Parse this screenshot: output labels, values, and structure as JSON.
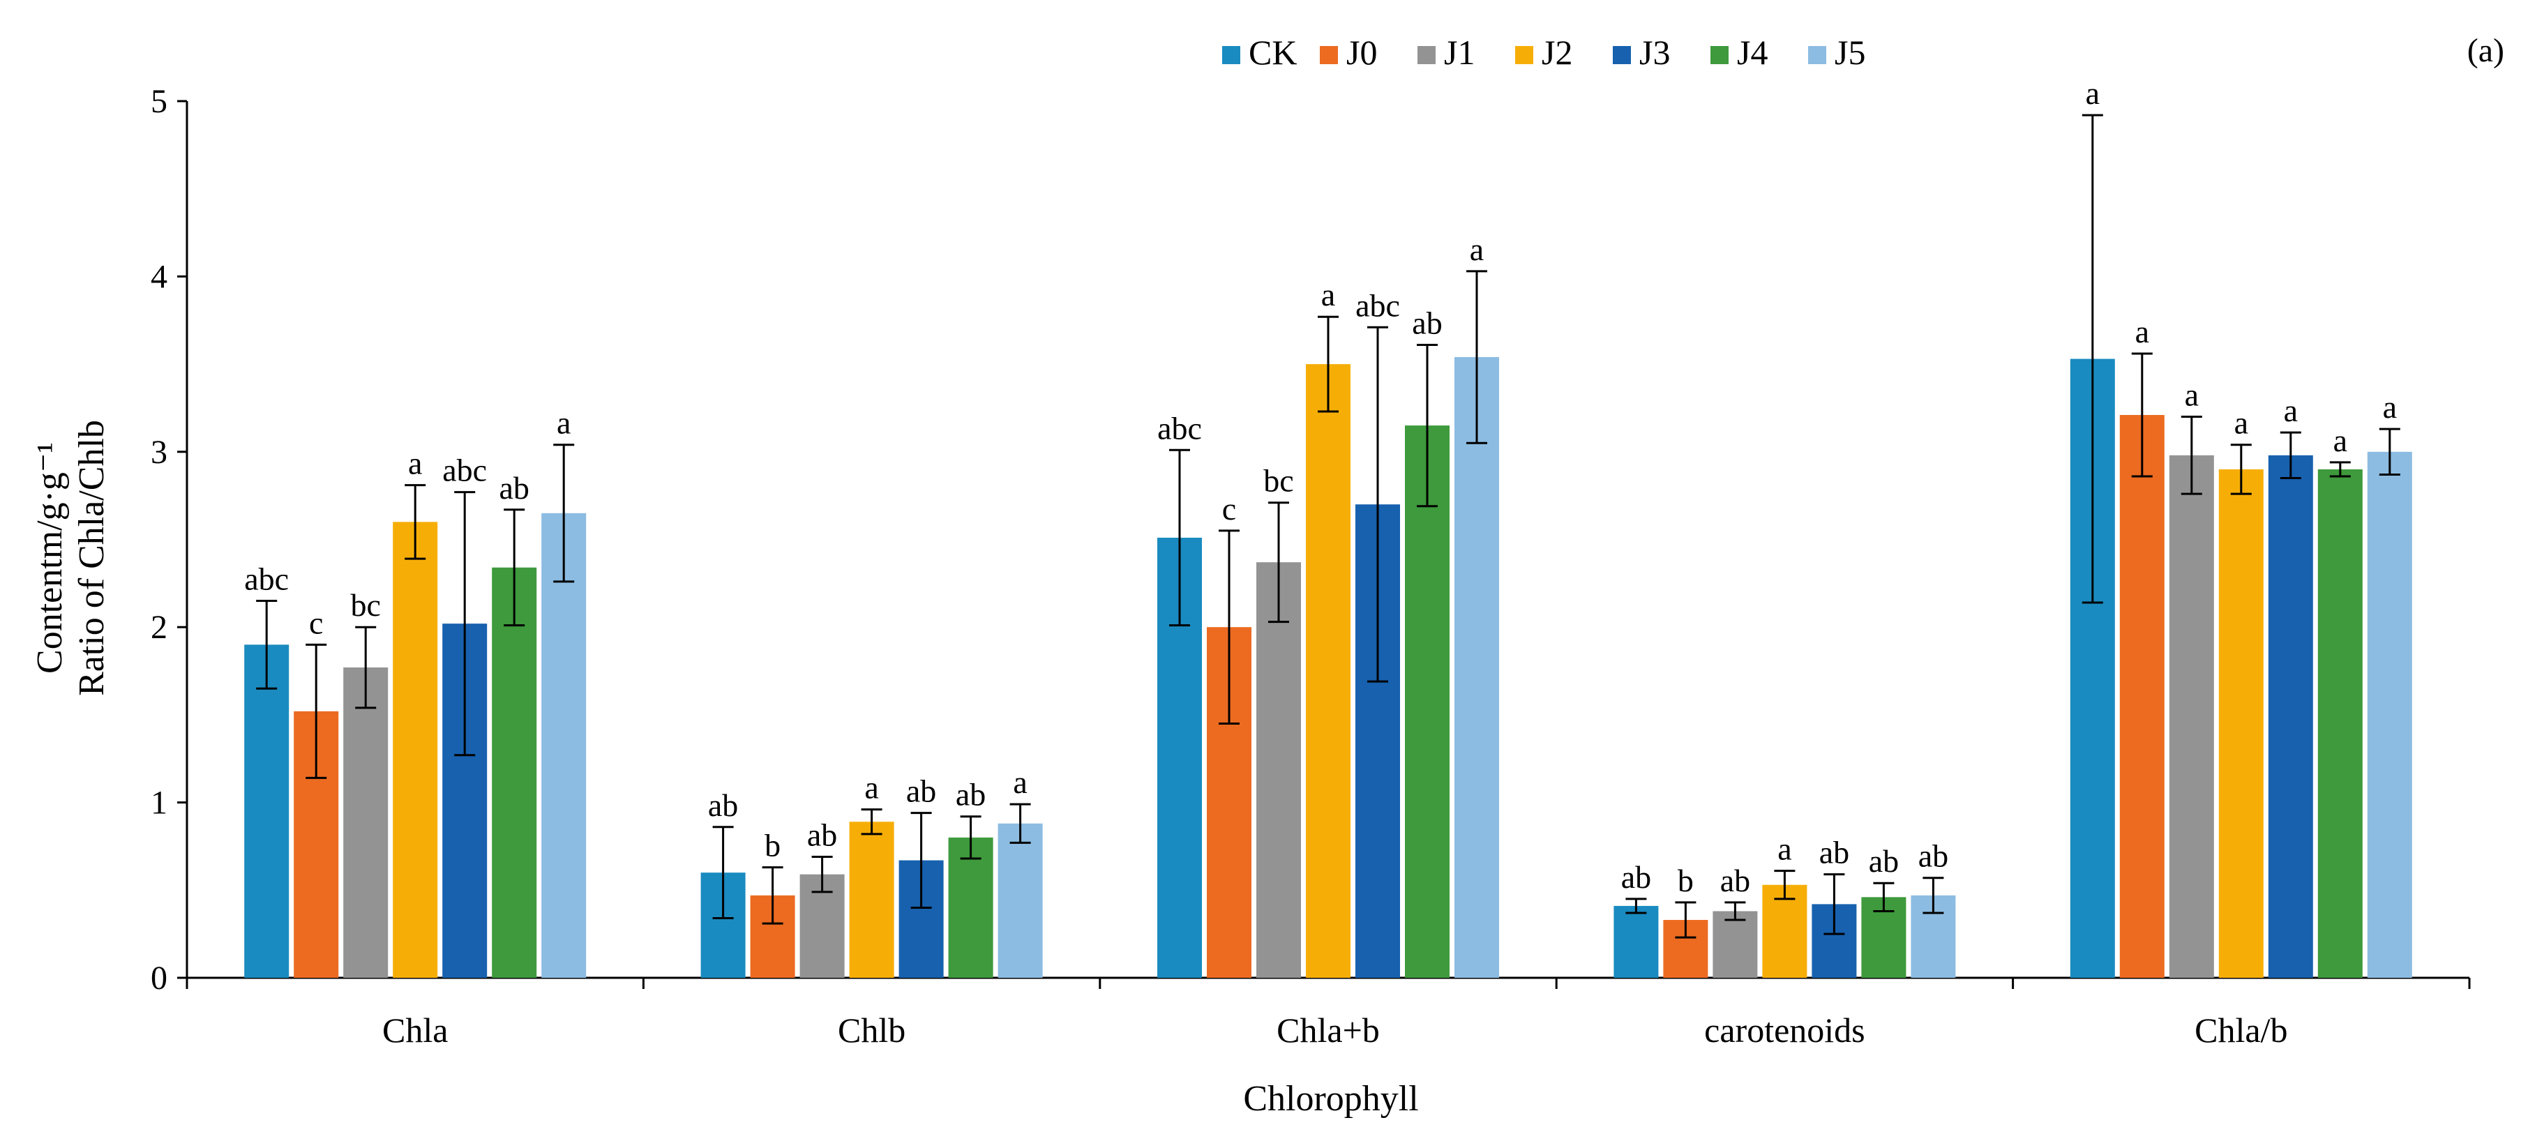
{
  "chart_data": {
    "type": "bar",
    "panel_label": "(a)",
    "title": "",
    "xlabel": "Chlorophyll",
    "ylabel_line1": "Contentm/g·g⁻¹",
    "ylabel_line2": "Ratio of Chla/Chlb",
    "ylim": [
      0,
      5
    ],
    "yticks": [
      0,
      1,
      2,
      3,
      4,
      5
    ],
    "grid": false,
    "legend_position": "top",
    "categories": [
      "Chla",
      "Chlb",
      "Chla+b",
      "carotenoids",
      "Chla/b"
    ],
    "series": [
      {
        "name": "CK",
        "color": "#1a8bc0",
        "values": [
          1.9,
          0.6,
          2.51,
          0.41,
          3.53
        ],
        "errors": [
          0.25,
          0.26,
          0.5,
          0.04,
          1.39
        ],
        "labels": [
          "abc",
          "ab",
          "abc",
          "ab",
          "a"
        ]
      },
      {
        "name": "J0",
        "color": "#ec6b21",
        "values": [
          1.52,
          0.47,
          2.0,
          0.33,
          3.21
        ],
        "errors": [
          0.38,
          0.16,
          0.55,
          0.1,
          0.35
        ],
        "labels": [
          "c",
          "b",
          "c",
          "b",
          "a"
        ]
      },
      {
        "name": "J1",
        "color": "#939393",
        "values": [
          1.77,
          0.59,
          2.37,
          0.38,
          2.98
        ],
        "errors": [
          0.23,
          0.1,
          0.34,
          0.05,
          0.22
        ],
        "labels": [
          "bc",
          "ab",
          "bc",
          "ab",
          "a"
        ]
      },
      {
        "name": "J2",
        "color": "#f6ae07",
        "values": [
          2.6,
          0.89,
          3.5,
          0.53,
          2.9
        ],
        "errors": [
          0.21,
          0.07,
          0.27,
          0.08,
          0.14
        ],
        "labels": [
          "a",
          "a",
          "a",
          "a",
          "a"
        ]
      },
      {
        "name": "J3",
        "color": "#1761af",
        "values": [
          2.02,
          0.67,
          2.7,
          0.42,
          2.98
        ],
        "errors": [
          0.75,
          0.27,
          1.01,
          0.17,
          0.13
        ],
        "labels": [
          "abc",
          "ab",
          "abc",
          "ab",
          "a"
        ]
      },
      {
        "name": "J4",
        "color": "#3e9a3c",
        "values": [
          2.34,
          0.8,
          3.15,
          0.46,
          2.9
        ],
        "errors": [
          0.33,
          0.12,
          0.46,
          0.08,
          0.04
        ],
        "labels": [
          "ab",
          "ab",
          "ab",
          "ab",
          "a"
        ]
      },
      {
        "name": "J5",
        "color": "#8cbce2",
        "values": [
          2.65,
          0.88,
          3.54,
          0.47,
          3.0
        ],
        "errors": [
          0.39,
          0.11,
          0.49,
          0.1,
          0.13
        ],
        "labels": [
          "a",
          "a",
          "a",
          "ab",
          "a"
        ]
      }
    ]
  }
}
